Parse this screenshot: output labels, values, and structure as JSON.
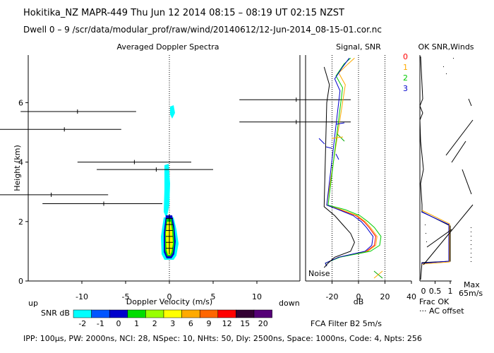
{
  "header": {
    "line1": "Hokitika_NZ   MAPR-449   Thu Jun 12 2014 08:15 – 08:19 UT 02:15 NZST",
    "line2": "Dwell   0 –  9    /scr/data/modular_prof/raw/wind/20140612/12-Jun-2014_08-15-01.cor.nc"
  },
  "panels": {
    "spectra_title": "Averaged Doppler Spectra",
    "signal_title": "Signal, SNR",
    "ok_title": "OK SNR,Winds",
    "noise_label": "Noise",
    "up_label": "up",
    "down_label": "down",
    "frac_ok_label": "Frac OK",
    "ac_offset_label": "··· AC offset",
    "max_label": "Max",
    "max_value": "65m/s",
    "fca_label": "FCA Filter B2   5m/s"
  },
  "snr_bar": {
    "label": "SNR dB",
    "levels": [
      "-2",
      "-1",
      "0",
      "1",
      "2",
      "3",
      "6",
      "9",
      "12",
      "15",
      "20"
    ],
    "colors": [
      "#00ffff",
      "#0055ff",
      "#0000cc",
      "#00dd00",
      "#99ff00",
      "#ffff00",
      "#ffaa00",
      "#ff6600",
      "#ff0000",
      "#330033",
      "#550077"
    ]
  },
  "footer": "IPP: 100µs,  PW: 2000ns,  NCI:  28,  NSpec: 10,  NHts: 50,  Dly: 2500ns,  Space: 1000ns,  Code: 4,  Npts: 256",
  "chart_data": {
    "type": "scatter",
    "spectra": {
      "xlabel": "Doppler Velocity (m/s)",
      "ylabel": "Height (km)",
      "xlim": [
        -19.5,
        14.5
      ],
      "ylim": [
        0,
        7.6
      ],
      "xticks": [
        -10,
        -5,
        0,
        5,
        10
      ],
      "yticks": [
        0,
        2,
        4,
        6
      ],
      "peaks": [
        {
          "h": 6.1,
          "v": 14.5,
          "xmin": 8,
          "xmax": 21
        },
        {
          "h": 5.7,
          "v": -10.5,
          "xmin": -17,
          "xmax": -3.8
        },
        {
          "h": 5.35,
          "v": 14.5,
          "xmin": 8,
          "xmax": 21
        },
        {
          "h": 5.1,
          "v": -12,
          "xmin": -19.5,
          "xmax": -5.5
        },
        {
          "h": 4.0,
          "v": -4,
          "xmin": -10.5,
          "xmax": 2.5
        },
        {
          "h": 3.75,
          "v": -1.5,
          "xmin": -8.3,
          "xmax": 5
        },
        {
          "h": 2.9,
          "v": -13.5,
          "xmin": -22,
          "xmax": -7
        },
        {
          "h": 2.6,
          "v": -7.5,
          "xmin": -14.5,
          "xmax": -0.8
        }
      ]
    },
    "signal": {
      "xlabel": "dB",
      "xlim": [
        -40,
        40
      ],
      "xticks": [
        -20,
        0,
        20,
        40
      ],
      "dotted_x": [
        -20,
        0,
        20
      ],
      "series": [
        {
          "name": "0",
          "color": "#ff0000",
          "points": [
            [
              -24,
              0.5
            ],
            [
              -25,
              0.6
            ],
            [
              -15,
              0.8
            ],
            [
              6,
              1.0
            ],
            [
              12,
              1.2
            ],
            [
              13,
              1.5
            ],
            [
              8,
              1.8
            ],
            [
              4,
              2.0
            ],
            [
              -2,
              2.2
            ],
            [
              -14,
              2.4
            ],
            [
              -24,
              2.55
            ]
          ]
        },
        {
          "name": "1",
          "color": "#ffaa00",
          "points": [
            [
              -24,
              0.5
            ],
            [
              -25,
              0.6
            ],
            [
              -15,
              0.8
            ],
            [
              7,
              1.0
            ],
            [
              13,
              1.2
            ],
            [
              14,
              1.5
            ],
            [
              9,
              1.8
            ],
            [
              5,
              2.0
            ],
            [
              -1,
              2.2
            ],
            [
              -13,
              2.4
            ],
            [
              -24,
              2.55
            ],
            [
              -10,
              6.6
            ],
            [
              -15,
              7.0
            ],
            [
              -8,
              7.3
            ],
            [
              -3,
              7.5
            ]
          ]
        },
        {
          "name": "2",
          "color": "#00cc00",
          "points": [
            [
              -24,
              0.5
            ],
            [
              -25,
              0.6
            ],
            [
              -14,
              0.8
            ],
            [
              9,
              1.0
            ],
            [
              16,
              1.2
            ],
            [
              17,
              1.5
            ],
            [
              12,
              1.8
            ],
            [
              7,
              2.0
            ],
            [
              1,
              2.2
            ],
            [
              -10,
              2.4
            ],
            [
              -23,
              2.55
            ],
            [
              -12,
              6.5
            ],
            [
              -17,
              6.9
            ],
            [
              -11,
              7.3
            ],
            [
              -6,
              7.5
            ]
          ]
        },
        {
          "name": "3",
          "color": "#0000cc",
          "points": [
            [
              -24,
              0.5
            ],
            [
              -25,
              0.6
            ],
            [
              -15,
              0.8
            ],
            [
              5,
              1.0
            ],
            [
              10,
              1.2
            ],
            [
              11,
              1.5
            ],
            [
              6,
              1.8
            ],
            [
              2,
              2.0
            ],
            [
              -4,
              2.2
            ],
            [
              -15,
              2.4
            ],
            [
              -24,
              2.55
            ],
            [
              -14,
              6.4
            ],
            [
              -18,
              6.8
            ],
            [
              -12,
              7.2
            ],
            [
              -7,
              7.5
            ]
          ]
        },
        {
          "name": "noise",
          "color": "#000000",
          "points": [
            [
              -26,
              0.45
            ],
            [
              -23,
              0.6
            ],
            [
              -18,
              0.8
            ],
            [
              -6,
              1.0
            ],
            [
              -3,
              1.3
            ],
            [
              -6,
              1.6
            ],
            [
              -12,
              1.9
            ],
            [
              -18,
              2.2
            ],
            [
              -26,
              2.5
            ],
            [
              -24,
              6.0
            ],
            [
              -22,
              6.6
            ],
            [
              -26,
              7.2
            ]
          ]
        }
      ],
      "legend_ids": [
        "0",
        "1",
        "2",
        "3"
      ]
    },
    "ok": {
      "xlim": [
        0,
        1
      ],
      "xticks": [
        "0.5",
        "1"
      ],
      "xtick_values": [
        0.5,
        1
      ],
      "extra_tick_label": "0"
    }
  }
}
